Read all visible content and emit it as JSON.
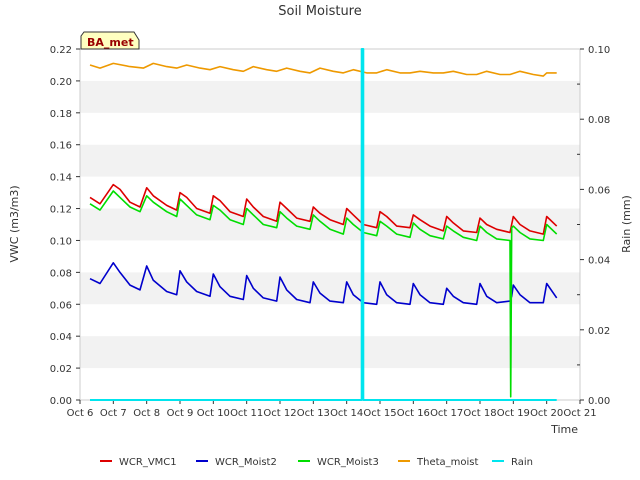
{
  "chart_data": {
    "type": "line",
    "title": "Soil Moisture",
    "badge": "BA_met",
    "xlabel": "Time",
    "ylabel": "VWC (m3/m3)",
    "y2label": "Rain (mm)",
    "xlim": [
      6,
      21
    ],
    "ylim": [
      0,
      0.22
    ],
    "y2lim": [
      0,
      0.1
    ],
    "x_ticks": [
      {
        "x": 6,
        "label": "Oct 6"
      },
      {
        "x": 7,
        "label": "Oct 7"
      },
      {
        "x": 8,
        "label": "Oct 8"
      },
      {
        "x": 9,
        "label": "Oct 9"
      },
      {
        "x": 10,
        "label": "Oct 10"
      },
      {
        "x": 11,
        "label": "Oct 11"
      },
      {
        "x": 12,
        "label": "Oct 12"
      },
      {
        "x": 13,
        "label": "Oct 13"
      },
      {
        "x": 14,
        "label": "Oct 14"
      },
      {
        "x": 15,
        "label": "Oct 15"
      },
      {
        "x": 16,
        "label": "Oct 16"
      },
      {
        "x": 17,
        "label": "Oct 17"
      },
      {
        "x": 18,
        "label": "Oct 18"
      },
      {
        "x": 19,
        "label": "Oct 19"
      },
      {
        "x": 20,
        "label": "Oct 20"
      },
      {
        "x": 21,
        "label": "Oct 21"
      }
    ],
    "y_ticks": [
      {
        "v": 0.0,
        "label": "0.00"
      },
      {
        "v": 0.02,
        "label": "0.02"
      },
      {
        "v": 0.04,
        "label": "0.04"
      },
      {
        "v": 0.06,
        "label": "0.06"
      },
      {
        "v": 0.08,
        "label": "0.08"
      },
      {
        "v": 0.1,
        "label": "0.10"
      },
      {
        "v": 0.12,
        "label": "0.12"
      },
      {
        "v": 0.14,
        "label": "0.14"
      },
      {
        "v": 0.16,
        "label": "0.16"
      },
      {
        "v": 0.18,
        "label": "0.18"
      },
      {
        "v": 0.2,
        "label": "0.20"
      },
      {
        "v": 0.22,
        "label": "0.22"
      }
    ],
    "y2_ticks": [
      {
        "v": 0.0,
        "label": "0.00"
      },
      {
        "v": 0.02,
        "label": "0.02"
      },
      {
        "v": 0.04,
        "label": "0.04"
      },
      {
        "v": 0.06,
        "label": "0.06"
      },
      {
        "v": 0.08,
        "label": "0.08"
      },
      {
        "v": 0.1,
        "label": "0.10"
      }
    ],
    "legend_position": "bottom",
    "grid": "alternating horizontal bands",
    "series": [
      {
        "name": "WCR_VMC1",
        "color": "#dd0000",
        "axis": "left",
        "x": [
          6.3,
          6.6,
          7.0,
          7.2,
          7.5,
          7.8,
          8.0,
          8.2,
          8.6,
          8.9,
          9.0,
          9.2,
          9.5,
          9.9,
          10.0,
          10.2,
          10.5,
          10.9,
          11.0,
          11.2,
          11.5,
          11.9,
          12.0,
          12.2,
          12.5,
          12.9,
          13.0,
          13.2,
          13.5,
          13.9,
          14.0,
          14.2,
          14.5,
          14.9,
          15.0,
          15.2,
          15.5,
          15.9,
          16.0,
          16.2,
          16.5,
          16.9,
          17.0,
          17.2,
          17.5,
          17.9,
          18.0,
          18.2,
          18.5,
          18.9,
          19.0,
          19.2,
          19.5,
          19.9,
          20.0,
          20.3
        ],
        "y": [
          0.127,
          0.123,
          0.135,
          0.132,
          0.124,
          0.121,
          0.133,
          0.128,
          0.122,
          0.119,
          0.13,
          0.127,
          0.12,
          0.117,
          0.128,
          0.125,
          0.118,
          0.115,
          0.126,
          0.121,
          0.115,
          0.112,
          0.124,
          0.12,
          0.114,
          0.112,
          0.121,
          0.117,
          0.113,
          0.11,
          0.12,
          0.116,
          0.11,
          0.108,
          0.118,
          0.115,
          0.109,
          0.108,
          0.116,
          0.113,
          0.109,
          0.106,
          0.115,
          0.111,
          0.106,
          0.105,
          0.114,
          0.11,
          0.107,
          0.105,
          0.115,
          0.11,
          0.106,
          0.104,
          0.115,
          0.109
        ]
      },
      {
        "name": "WCR_Moist2",
        "color": "#0000cc",
        "axis": "left",
        "x": [
          6.3,
          6.6,
          7.0,
          7.2,
          7.5,
          7.8,
          8.0,
          8.2,
          8.6,
          8.9,
          9.0,
          9.2,
          9.5,
          9.9,
          10.0,
          10.2,
          10.5,
          10.9,
          11.0,
          11.2,
          11.5,
          11.9,
          12.0,
          12.2,
          12.5,
          12.9,
          13.0,
          13.2,
          13.5,
          13.9,
          14.0,
          14.2,
          14.5,
          14.9,
          15.0,
          15.2,
          15.5,
          15.9,
          16.0,
          16.2,
          16.5,
          16.9,
          17.0,
          17.2,
          17.5,
          17.9,
          18.0,
          18.2,
          18.5,
          18.9,
          18.95,
          19.0,
          19.2,
          19.5,
          19.9,
          20.0,
          20.3
        ],
        "y": [
          0.076,
          0.073,
          0.086,
          0.08,
          0.072,
          0.069,
          0.084,
          0.075,
          0.068,
          0.066,
          0.081,
          0.074,
          0.068,
          0.065,
          0.079,
          0.071,
          0.065,
          0.063,
          0.078,
          0.07,
          0.064,
          0.062,
          0.077,
          0.069,
          0.063,
          0.061,
          0.074,
          0.067,
          0.062,
          0.061,
          0.074,
          0.066,
          0.061,
          0.06,
          0.074,
          0.066,
          0.061,
          0.06,
          0.073,
          0.066,
          0.061,
          0.06,
          0.07,
          0.065,
          0.061,
          0.06,
          0.073,
          0.065,
          0.061,
          0.062,
          0.065,
          0.072,
          0.066,
          0.061,
          0.061,
          0.073,
          0.064
        ]
      },
      {
        "name": "WCR_Moist3",
        "color": "#00dd00",
        "axis": "left",
        "x": [
          6.3,
          6.6,
          7.0,
          7.2,
          7.5,
          7.8,
          8.0,
          8.2,
          8.6,
          8.9,
          9.0,
          9.2,
          9.5,
          9.9,
          10.0,
          10.2,
          10.5,
          10.9,
          11.0,
          11.2,
          11.5,
          11.9,
          12.0,
          12.2,
          12.5,
          12.9,
          13.0,
          13.2,
          13.5,
          13.9,
          14.0,
          14.2,
          14.5,
          14.9,
          15.0,
          15.2,
          15.5,
          15.9,
          16.0,
          16.2,
          16.5,
          16.9,
          17.0,
          17.2,
          17.5,
          17.9,
          18.0,
          18.2,
          18.5,
          18.9,
          18.92,
          18.95,
          19.0,
          19.2,
          19.5,
          19.9,
          20.0,
          20.3
        ],
        "y": [
          0.123,
          0.119,
          0.131,
          0.127,
          0.121,
          0.118,
          0.128,
          0.124,
          0.118,
          0.115,
          0.126,
          0.122,
          0.116,
          0.113,
          0.122,
          0.119,
          0.113,
          0.11,
          0.12,
          0.116,
          0.11,
          0.108,
          0.118,
          0.114,
          0.109,
          0.107,
          0.116,
          0.112,
          0.107,
          0.104,
          0.114,
          0.11,
          0.105,
          0.103,
          0.112,
          0.109,
          0.104,
          0.102,
          0.111,
          0.107,
          0.103,
          0.101,
          0.109,
          0.106,
          0.102,
          0.1,
          0.109,
          0.105,
          0.101,
          0.1,
          0.002,
          0.108,
          0.109,
          0.105,
          0.101,
          0.1,
          0.11,
          0.104
        ]
      },
      {
        "name": "Theta_moist",
        "color": "#ee9900",
        "axis": "left",
        "x": [
          6.3,
          6.6,
          7.0,
          7.5,
          7.9,
          8.2,
          8.6,
          8.9,
          9.2,
          9.6,
          9.9,
          10.2,
          10.6,
          10.9,
          11.2,
          11.6,
          11.9,
          12.2,
          12.6,
          12.9,
          13.2,
          13.6,
          13.9,
          14.2,
          14.6,
          14.9,
          15.2,
          15.6,
          15.9,
          16.2,
          16.6,
          16.9,
          17.2,
          17.6,
          17.9,
          18.2,
          18.6,
          18.9,
          19.2,
          19.6,
          19.9,
          20.0,
          20.3
        ],
        "y": [
          0.21,
          0.208,
          0.211,
          0.209,
          0.208,
          0.211,
          0.209,
          0.208,
          0.21,
          0.208,
          0.207,
          0.209,
          0.207,
          0.206,
          0.209,
          0.207,
          0.206,
          0.208,
          0.206,
          0.205,
          0.208,
          0.206,
          0.205,
          0.207,
          0.205,
          0.205,
          0.207,
          0.205,
          0.205,
          0.206,
          0.205,
          0.205,
          0.206,
          0.204,
          0.204,
          0.206,
          0.204,
          0.204,
          0.206,
          0.204,
          0.203,
          0.205,
          0.205
        ]
      },
      {
        "name": "Rain",
        "color": "#00e5ee",
        "axis": "right",
        "x": [
          6.3,
          14.45,
          14.45,
          14.5,
          14.5,
          20.3
        ],
        "y": [
          0.0,
          0.0,
          0.1,
          0.1,
          0.0,
          0.0
        ]
      }
    ]
  }
}
